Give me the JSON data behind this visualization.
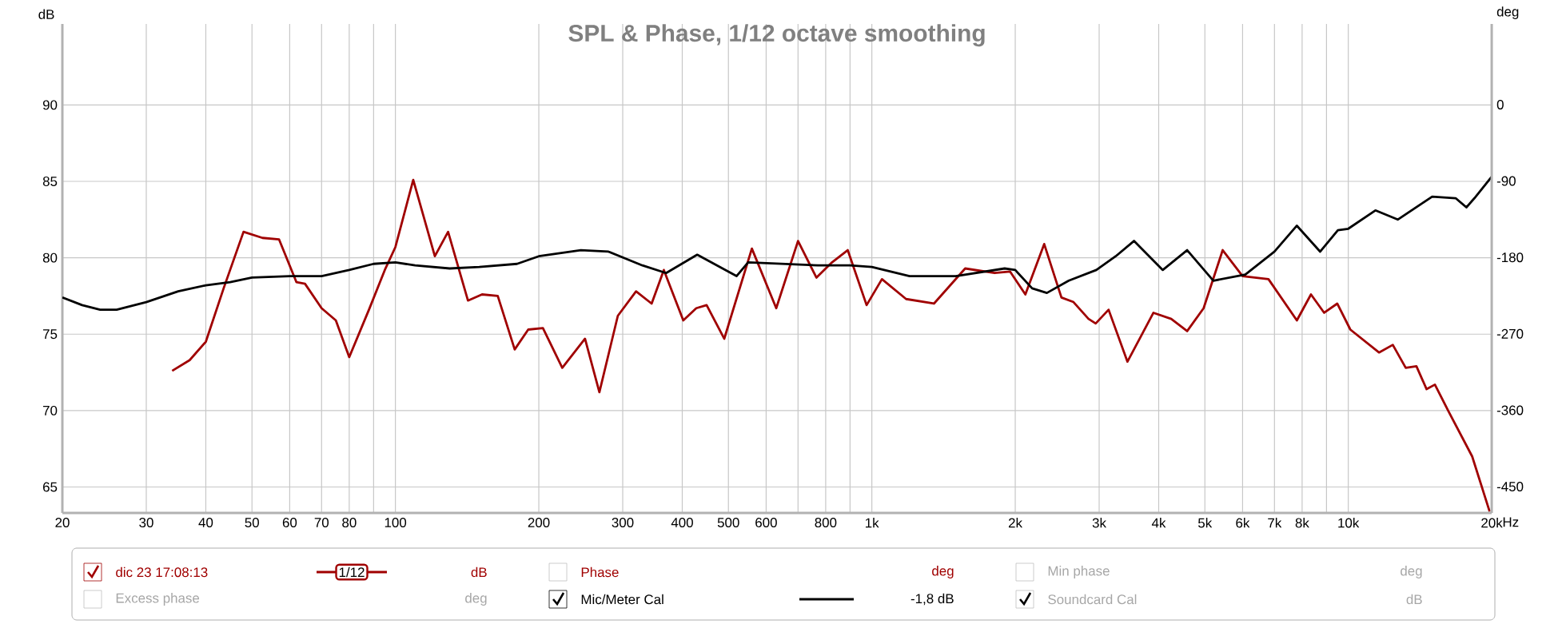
{
  "chart_data": {
    "type": "line",
    "title": "SPL & Phase, 1/12 octave smoothing",
    "ylabel": "dB",
    "y2label": "deg",
    "xlim": [
      20,
      20000
    ],
    "ylim": [
      63.3,
      95.3
    ],
    "y2lim": [
      -481,
      95
    ],
    "xticks": [
      20,
      30,
      40,
      50,
      60,
      70,
      80,
      {
        "value": 90,
        "label": null
      },
      100,
      200,
      300,
      400,
      500,
      600,
      {
        "value": 700,
        "label": null
      },
      800,
      {
        "value": 900,
        "label": null
      },
      {
        "value": 1000,
        "label": "1k"
      },
      {
        "value": 2000,
        "label": "2k"
      },
      {
        "value": 3000,
        "label": "3k"
      },
      {
        "value": 4000,
        "label": "4k"
      },
      {
        "value": 5000,
        "label": "5k"
      },
      {
        "value": 6000,
        "label": "6k"
      },
      {
        "value": 7000,
        "label": "7k"
      },
      {
        "value": 8000,
        "label": "8k"
      },
      {
        "value": 9000,
        "label": null
      },
      {
        "value": 10000,
        "label": "10k"
      },
      {
        "value": 20000,
        "label": "20k"
      }
    ],
    "xlabel": "Hz",
    "yticks": [
      65,
      70,
      75,
      80,
      85,
      90
    ],
    "y2ticks": [
      -450,
      -360,
      -270,
      -180,
      -90,
      0
    ],
    "log": "x",
    "grid": true,
    "legend": "bottom",
    "marker": "none",
    "line_style": "solid",
    "series": [
      {
        "name": "dic 23 17:08:13",
        "color": "#a00000",
        "x": [
          34,
          37,
          40,
          43.6,
          48,
          52.6,
          57,
          62,
          64.6,
          70,
          75,
          80,
          88,
          95,
          100,
          109,
          121,
          129,
          142,
          152,
          164,
          178,
          190,
          204,
          224,
          250,
          268,
          293,
          320,
          345,
          366,
          402,
          428,
          450,
          490,
          560,
          630,
          700,
          765,
          825,
          890,
          975,
          1050,
          1180,
          1350,
          1570,
          1810,
          1950,
          2100,
          2300,
          2500,
          2650,
          2850,
          2950,
          3140,
          3440,
          3900,
          4250,
          4590,
          4970,
          5450,
          6000,
          6800,
          7800,
          8350,
          8900,
          9480,
          10100,
          11600,
          12400,
          13200,
          13900,
          14600,
          15200,
          16200,
          18200,
          19800
        ],
        "values": [
          72.6,
          73.3,
          74.5,
          78.0,
          81.7,
          81.3,
          81.2,
          78.4,
          78.3,
          76.7,
          75.9,
          73.5,
          76.6,
          79.2,
          80.7,
          85.1,
          80.1,
          81.7,
          77.2,
          77.6,
          77.5,
          74.0,
          75.3,
          75.4,
          72.8,
          74.7,
          71.2,
          76.2,
          77.8,
          77.0,
          79.2,
          75.9,
          76.7,
          76.9,
          74.7,
          80.6,
          76.7,
          81.1,
          78.7,
          79.7,
          80.5,
          76.9,
          78.6,
          77.3,
          77.0,
          79.3,
          79.0,
          79.1,
          77.6,
          80.9,
          77.4,
          77.1,
          76.0,
          75.7,
          76.6,
          73.2,
          76.4,
          76.0,
          75.2,
          76.7,
          80.5,
          78.8,
          78.6,
          75.9,
          77.6,
          76.4,
          77.0,
          75.3,
          73.8,
          74.3,
          72.8,
          72.9,
          71.4,
          71.7,
          70.0,
          67.0,
          63.4
        ]
      },
      {
        "name": "Mic/Meter Cal",
        "color": "#000000",
        "x": [
          20,
          22,
          24,
          26,
          30,
          35,
          40,
          45,
          50,
          60,
          70,
          80,
          90,
          100,
          110,
          130,
          150,
          180,
          200,
          245,
          280,
          330,
          370,
          430,
          520,
          550,
          770,
          900,
          1000,
          1200,
          1500,
          1900,
          2000,
          2170,
          2330,
          2590,
          2960,
          3250,
          3550,
          4080,
          4590,
          5210,
          6080,
          7000,
          7800,
          8730,
          9510,
          10000,
          11400,
          12700,
          15000,
          16800,
          17700,
          18400,
          20000
        ],
        "values": [
          77.4,
          76.9,
          76.6,
          76.6,
          77.1,
          77.8,
          78.2,
          78.4,
          78.7,
          78.8,
          78.8,
          79.2,
          79.6,
          79.7,
          79.5,
          79.3,
          79.4,
          79.6,
          80.1,
          80.5,
          80.4,
          79.5,
          79.0,
          80.2,
          78.8,
          79.7,
          79.5,
          79.5,
          79.4,
          78.8,
          78.8,
          79.3,
          79.2,
          78.0,
          77.7,
          78.5,
          79.2,
          80.1,
          81.1,
          79.2,
          80.5,
          78.5,
          78.9,
          80.4,
          82.1,
          80.4,
          81.8,
          81.9,
          83.1,
          82.5,
          84.0,
          83.9,
          83.3,
          83.9,
          85.3
        ]
      }
    ],
    "annotations": [
      "1/12",
      "dB",
      "Phase",
      "deg",
      "Min phase",
      "deg",
      "Excess phase",
      "deg",
      "-1,8 dB",
      "Soundcard Cal",
      "dB"
    ]
  }
}
